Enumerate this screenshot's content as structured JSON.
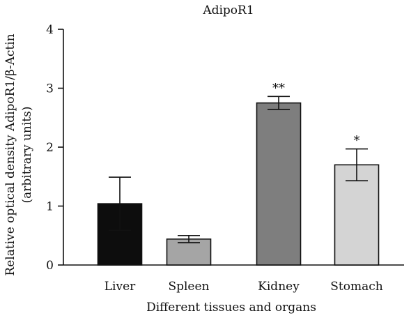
{
  "chart_data": {
    "type": "bar",
    "title": "AdipoR1",
    "xlabel": "Different tissues and organs",
    "ylabel_line1": "Relative optical density AdipoR1/β-Actin",
    "ylabel_line2": "(arbitrary units)",
    "ylim": [
      0,
      4
    ],
    "yticks": [
      "0",
      "1",
      "2",
      "3",
      "4"
    ],
    "categories": [
      "Liver",
      "Spleen",
      "Kidney",
      "Stomach"
    ],
    "values": [
      1.04,
      0.44,
      2.75,
      1.7
    ],
    "errors": [
      0.45,
      0.06,
      0.11,
      0.27
    ],
    "significance": [
      "",
      "",
      "**",
      "*"
    ],
    "colors": [
      "#0d0d0d",
      "#a5a5a5",
      "#7e7e7e",
      "#d4d4d4"
    ],
    "grid": false,
    "legend": "none"
  }
}
